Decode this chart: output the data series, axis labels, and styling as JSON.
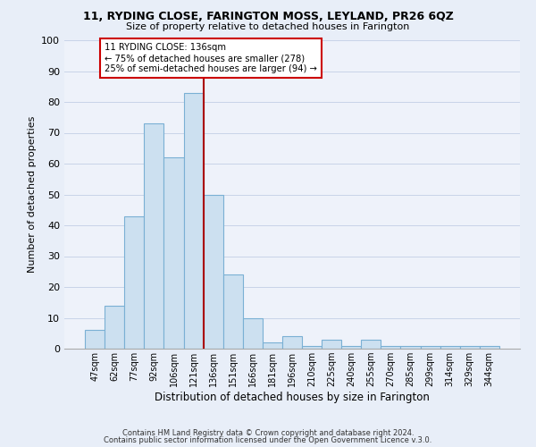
{
  "title1": "11, RYDING CLOSE, FARINGTON MOSS, LEYLAND, PR26 6QZ",
  "title2": "Size of property relative to detached houses in Farington",
  "xlabel": "Distribution of detached houses by size in Farington",
  "ylabel": "Number of detached properties",
  "bar_labels": [
    "47sqm",
    "62sqm",
    "77sqm",
    "92sqm",
    "106sqm",
    "121sqm",
    "136sqm",
    "151sqm",
    "166sqm",
    "181sqm",
    "196sqm",
    "210sqm",
    "225sqm",
    "240sqm",
    "255sqm",
    "270sqm",
    "285sqm",
    "299sqm",
    "314sqm",
    "329sqm",
    "344sqm"
  ],
  "bar_heights": [
    6,
    14,
    43,
    73,
    62,
    83,
    50,
    24,
    10,
    2,
    4,
    1,
    3,
    1,
    3,
    1,
    1,
    1,
    1,
    1,
    1
  ],
  "bar_color": "#cce0f0",
  "bar_edge_color": "#7ab0d4",
  "vline_color": "#aa0000",
  "annotation_title": "11 RYDING CLOSE: 136sqm",
  "annotation_line1": "← 75% of detached houses are smaller (278)",
  "annotation_line2": "25% of semi-detached houses are larger (94) →",
  "annotation_box_color": "#ffffff",
  "annotation_box_edge": "#cc0000",
  "ylim": [
    0,
    100
  ],
  "yticks": [
    0,
    10,
    20,
    30,
    40,
    50,
    60,
    70,
    80,
    90,
    100
  ],
  "footnote1": "Contains HM Land Registry data © Crown copyright and database right 2024.",
  "footnote2": "Contains public sector information licensed under the Open Government Licence v.3.0.",
  "bg_color": "#e8eef8",
  "plot_bg_color": "#eef2fa"
}
